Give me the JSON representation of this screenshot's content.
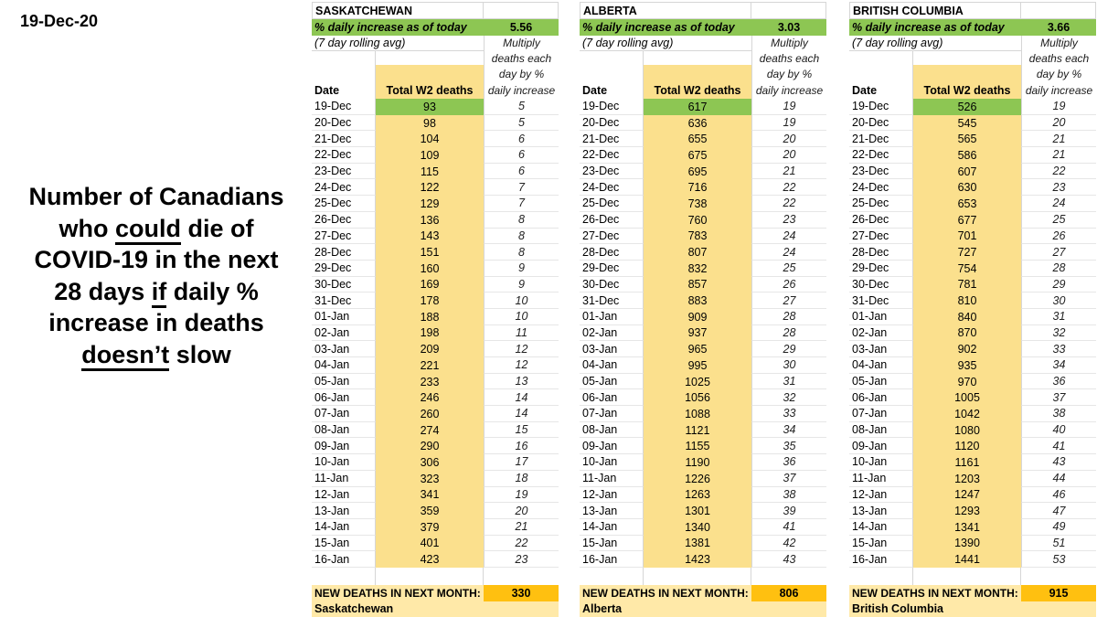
{
  "report_date": "19-Dec-20",
  "headline": {
    "lines": [
      [
        {
          "text": "Number of Canadians"
        }
      ],
      [
        {
          "text": "who "
        },
        {
          "text": "could",
          "underline": true
        },
        {
          "text": " die of"
        }
      ],
      [
        {
          "text": "COVID-19 in the next"
        }
      ],
      [
        {
          "text": "28 days "
        },
        {
          "text": "if",
          "underline": true
        },
        {
          "text": " daily %"
        }
      ],
      [
        {
          "text": "increase in deaths"
        }
      ],
      [
        {
          "text": "doesn’t",
          "underline": true
        },
        {
          "text": " slow"
        }
      ]
    ]
  },
  "colors": {
    "green": "#8dc653",
    "light_yellow": "#fbe08d",
    "cream": "#ffe9a8",
    "orange": "#ffc010"
  },
  "table_labels": {
    "pct_increase_label": "% daily increase as of today",
    "rolling_avg_label": "(7 day rolling avg)",
    "date_header": "Date",
    "deaths_header": "Total W2 deaths",
    "multiply_header_lines": [
      "Multiply",
      "deaths each",
      "day by %",
      "daily increase"
    ],
    "summary_label": "NEW DEATHS IN NEXT MONTH:"
  },
  "tables": [
    {
      "region": "SASKATCHEWAN",
      "region_footer": "Saskatchewan",
      "pct_daily_increase": "5.56",
      "new_deaths_next_month": "330",
      "rows": [
        [
          "19-Dec",
          "93",
          "5"
        ],
        [
          "20-Dec",
          "98",
          "5"
        ],
        [
          "21-Dec",
          "104",
          "6"
        ],
        [
          "22-Dec",
          "109",
          "6"
        ],
        [
          "23-Dec",
          "115",
          "6"
        ],
        [
          "24-Dec",
          "122",
          "7"
        ],
        [
          "25-Dec",
          "129",
          "7"
        ],
        [
          "26-Dec",
          "136",
          "8"
        ],
        [
          "27-Dec",
          "143",
          "8"
        ],
        [
          "28-Dec",
          "151",
          "8"
        ],
        [
          "29-Dec",
          "160",
          "9"
        ],
        [
          "30-Dec",
          "169",
          "9"
        ],
        [
          "31-Dec",
          "178",
          "10"
        ],
        [
          "01-Jan",
          "188",
          "10"
        ],
        [
          "02-Jan",
          "198",
          "11"
        ],
        [
          "03-Jan",
          "209",
          "12"
        ],
        [
          "04-Jan",
          "221",
          "12"
        ],
        [
          "05-Jan",
          "233",
          "13"
        ],
        [
          "06-Jan",
          "246",
          "14"
        ],
        [
          "07-Jan",
          "260",
          "14"
        ],
        [
          "08-Jan",
          "274",
          "15"
        ],
        [
          "09-Jan",
          "290",
          "16"
        ],
        [
          "10-Jan",
          "306",
          "17"
        ],
        [
          "11-Jan",
          "323",
          "18"
        ],
        [
          "12-Jan",
          "341",
          "19"
        ],
        [
          "13-Jan",
          "359",
          "20"
        ],
        [
          "14-Jan",
          "379",
          "21"
        ],
        [
          "15-Jan",
          "401",
          "22"
        ],
        [
          "16-Jan",
          "423",
          "23"
        ]
      ]
    },
    {
      "region": "ALBERTA",
      "region_footer": "Alberta",
      "pct_daily_increase": "3.03",
      "new_deaths_next_month": "806",
      "rows": [
        [
          "19-Dec",
          "617",
          "19"
        ],
        [
          "20-Dec",
          "636",
          "19"
        ],
        [
          "21-Dec",
          "655",
          "20"
        ],
        [
          "22-Dec",
          "675",
          "20"
        ],
        [
          "23-Dec",
          "695",
          "21"
        ],
        [
          "24-Dec",
          "716",
          "22"
        ],
        [
          "25-Dec",
          "738",
          "22"
        ],
        [
          "26-Dec",
          "760",
          "23"
        ],
        [
          "27-Dec",
          "783",
          "24"
        ],
        [
          "28-Dec",
          "807",
          "24"
        ],
        [
          "29-Dec",
          "832",
          "25"
        ],
        [
          "30-Dec",
          "857",
          "26"
        ],
        [
          "31-Dec",
          "883",
          "27"
        ],
        [
          "01-Jan",
          "909",
          "28"
        ],
        [
          "02-Jan",
          "937",
          "28"
        ],
        [
          "03-Jan",
          "965",
          "29"
        ],
        [
          "04-Jan",
          "995",
          "30"
        ],
        [
          "05-Jan",
          "1025",
          "31"
        ],
        [
          "06-Jan",
          "1056",
          "32"
        ],
        [
          "07-Jan",
          "1088",
          "33"
        ],
        [
          "08-Jan",
          "1121",
          "34"
        ],
        [
          "09-Jan",
          "1155",
          "35"
        ],
        [
          "10-Jan",
          "1190",
          "36"
        ],
        [
          "11-Jan",
          "1226",
          "37"
        ],
        [
          "12-Jan",
          "1263",
          "38"
        ],
        [
          "13-Jan",
          "1301",
          "39"
        ],
        [
          "14-Jan",
          "1340",
          "41"
        ],
        [
          "15-Jan",
          "1381",
          "42"
        ],
        [
          "16-Jan",
          "1423",
          "43"
        ]
      ]
    },
    {
      "region": "BRITISH COLUMBIA",
      "region_footer": "British Columbia",
      "pct_daily_increase": "3.66",
      "new_deaths_next_month": "915",
      "rows": [
        [
          "19-Dec",
          "526",
          "19"
        ],
        [
          "20-Dec",
          "545",
          "20"
        ],
        [
          "21-Dec",
          "565",
          "21"
        ],
        [
          "22-Dec",
          "586",
          "21"
        ],
        [
          "23-Dec",
          "607",
          "22"
        ],
        [
          "24-Dec",
          "630",
          "23"
        ],
        [
          "25-Dec",
          "653",
          "24"
        ],
        [
          "26-Dec",
          "677",
          "25"
        ],
        [
          "27-Dec",
          "701",
          "26"
        ],
        [
          "28-Dec",
          "727",
          "27"
        ],
        [
          "29-Dec",
          "754",
          "28"
        ],
        [
          "30-Dec",
          "781",
          "29"
        ],
        [
          "31-Dec",
          "810",
          "30"
        ],
        [
          "01-Jan",
          "840",
          "31"
        ],
        [
          "02-Jan",
          "870",
          "32"
        ],
        [
          "03-Jan",
          "902",
          "33"
        ],
        [
          "04-Jan",
          "935",
          "34"
        ],
        [
          "05-Jan",
          "970",
          "36"
        ],
        [
          "06-Jan",
          "1005",
          "37"
        ],
        [
          "07-Jan",
          "1042",
          "38"
        ],
        [
          "08-Jan",
          "1080",
          "40"
        ],
        [
          "09-Jan",
          "1120",
          "41"
        ],
        [
          "10-Jan",
          "1161",
          "43"
        ],
        [
          "11-Jan",
          "1203",
          "44"
        ],
        [
          "12-Jan",
          "1247",
          "46"
        ],
        [
          "13-Jan",
          "1293",
          "47"
        ],
        [
          "14-Jan",
          "1341",
          "49"
        ],
        [
          "15-Jan",
          "1390",
          "51"
        ],
        [
          "16-Jan",
          "1441",
          "53"
        ]
      ]
    }
  ]
}
